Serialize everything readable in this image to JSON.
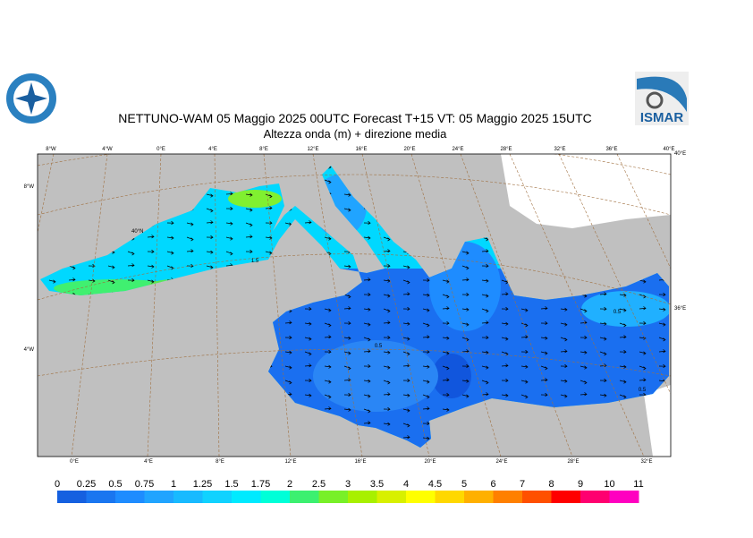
{
  "header": {
    "title": "NETTUNO-WAM  05   Maggio  2025 00UTC Forecast T+15 VT: 05   Maggio  2025 15UTC",
    "subtitle": "Altezza onda (m) + direzione media",
    "logo_right": "ISMAR"
  },
  "map": {
    "top_lon_labels": [
      "8°W",
      "4°W",
      "0°E",
      "4°E",
      "8°E",
      "12°E",
      "16°E",
      "20°E",
      "24°E",
      "28°E",
      "32°E",
      "36°E",
      "40°E"
    ],
    "bottom_lon_labels": [
      "0°E",
      "4°E",
      "8°E",
      "12°E",
      "16°E",
      "20°E",
      "24°E",
      "28°E",
      "32°E"
    ],
    "left_labels": [
      "8°W",
      "40°N",
      "4°W"
    ],
    "right_labels": [
      "40°E",
      "36°E"
    ],
    "contour_labels": [
      "0.5",
      "0.5",
      "0.5",
      "1.5"
    ]
  },
  "colorbar": {
    "ticks": [
      0,
      0.25,
      0.5,
      0.75,
      1,
      1.25,
      1.5,
      1.75,
      2,
      2.5,
      3,
      3.5,
      4,
      4.5,
      5,
      6,
      7,
      8,
      9,
      10,
      11
    ],
    "colors": [
      "#1560e0",
      "#1a76f0",
      "#1e8cff",
      "#20a4ff",
      "#18baff",
      "#10d2ff",
      "#00eaff",
      "#00ffd8",
      "#3cf070",
      "#78f028",
      "#a8f000",
      "#d8f000",
      "#ffff00",
      "#ffd800",
      "#ffb000",
      "#ff8000",
      "#ff5000",
      "#ff0000",
      "#ff0070",
      "#ff00c0"
    ]
  }
}
